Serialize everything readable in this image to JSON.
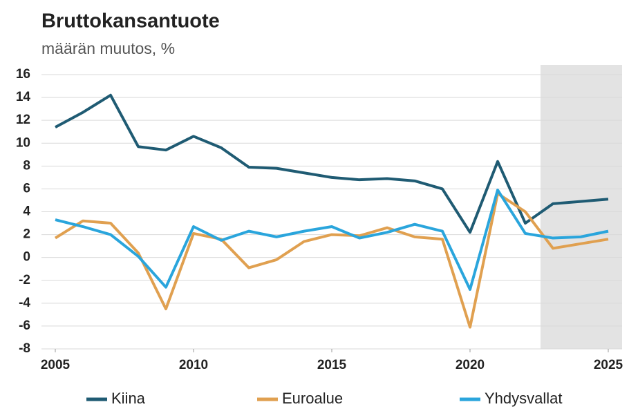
{
  "chart_data": {
    "type": "line",
    "title": "Bruttokansantuote",
    "subtitle": "määrän muutos, %",
    "x": [
      2005,
      2006,
      2007,
      2008,
      2009,
      2010,
      2011,
      2012,
      2013,
      2014,
      2015,
      2016,
      2017,
      2018,
      2019,
      2020,
      2021,
      2022,
      2023,
      2024,
      2025
    ],
    "series": [
      {
        "name": "Kiina",
        "color": "#1f5b73",
        "values": [
          11.4,
          12.7,
          14.2,
          9.7,
          9.4,
          10.6,
          9.6,
          7.9,
          7.8,
          7.4,
          7.0,
          6.8,
          6.9,
          6.7,
          6.0,
          2.2,
          8.4,
          3.0,
          4.7,
          4.9,
          5.1
        ]
      },
      {
        "name": "Euroalue",
        "color": "#e0a050",
        "values": [
          1.7,
          3.2,
          3.0,
          0.4,
          -4.5,
          2.1,
          1.6,
          -0.9,
          -0.2,
          1.4,
          2.0,
          1.9,
          2.6,
          1.8,
          1.6,
          -6.1,
          5.6,
          4.0,
          0.8,
          1.2,
          1.6
        ]
      },
      {
        "name": "Yhdysvallat",
        "color": "#2aa5dc",
        "values": [
          3.3,
          2.7,
          2.0,
          0.1,
          -2.6,
          2.7,
          1.5,
          2.3,
          1.8,
          2.3,
          2.7,
          1.7,
          2.2,
          2.9,
          2.3,
          -2.8,
          5.9,
          2.1,
          1.7,
          1.8,
          2.3
        ]
      }
    ],
    "xlim": [
      2004.5,
      2025.5
    ],
    "xticks": [
      2005,
      2010,
      2015,
      2020,
      2025
    ],
    "ylim": [
      -8,
      16
    ],
    "yticks": [
      -8,
      -6,
      -4,
      -2,
      0,
      2,
      4,
      6,
      8,
      10,
      12,
      14,
      16
    ],
    "grid": true,
    "shade_xlim": [
      2022.55,
      2025.5
    ],
    "legend": "bottom"
  }
}
